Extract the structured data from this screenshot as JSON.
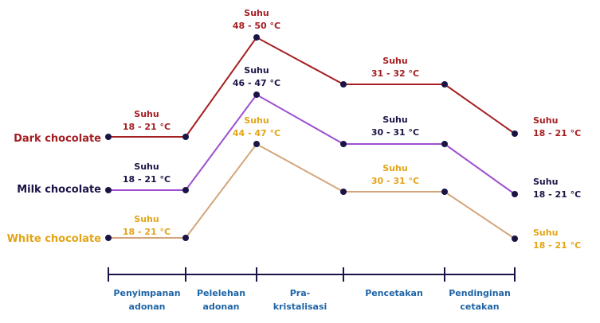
{
  "colors": {
    "dark": "#a51e22",
    "milk": "#9d4fd0",
    "milk_label": "#1a1446",
    "white_line": "#d4a57b",
    "white_label": "#e3a416",
    "axis": "#1a1446",
    "stage_text": "#1e64a6",
    "dot": "#1a1446"
  },
  "series": [
    {
      "key": "dark",
      "label": "Dark chocolate",
      "temps": [
        {
          "title": "Suhu",
          "range": "18 - 21 °C"
        },
        {
          "title": "Suhu",
          "range": "48 - 50 °C"
        },
        {
          "title": "Suhu",
          "range": "31 - 32 °C"
        },
        {
          "title": "Suhu",
          "range": "18 - 21 °C"
        }
      ]
    },
    {
      "key": "milk",
      "label": "Milk chocolate",
      "temps": [
        {
          "title": "Suhu",
          "range": "18 - 21 °C"
        },
        {
          "title": "Suhu",
          "range": "46 - 47 °C"
        },
        {
          "title": "Suhu",
          "range": "30 - 31 °C"
        },
        {
          "title": "Suhu",
          "range": "18 - 21 °C"
        }
      ]
    },
    {
      "key": "white",
      "label": "White chocolate",
      "temps": [
        {
          "title": "Suhu",
          "range": "18 - 21 °C"
        },
        {
          "title": "Suhu",
          "range": "44 - 47 °C"
        },
        {
          "title": "Suhu",
          "range": "30 - 31 °C"
        },
        {
          "title": "Suhu",
          "range": "18 - 21 °C"
        }
      ]
    }
  ],
  "stages": [
    [
      "Penyimpanan",
      "adonan"
    ],
    [
      "Pelelehan",
      "adonan"
    ],
    [
      "Pra-",
      "kristalisasi"
    ],
    [
      "Pencetakan"
    ],
    [
      "Pendinginan",
      "cetakan"
    ]
  ]
}
